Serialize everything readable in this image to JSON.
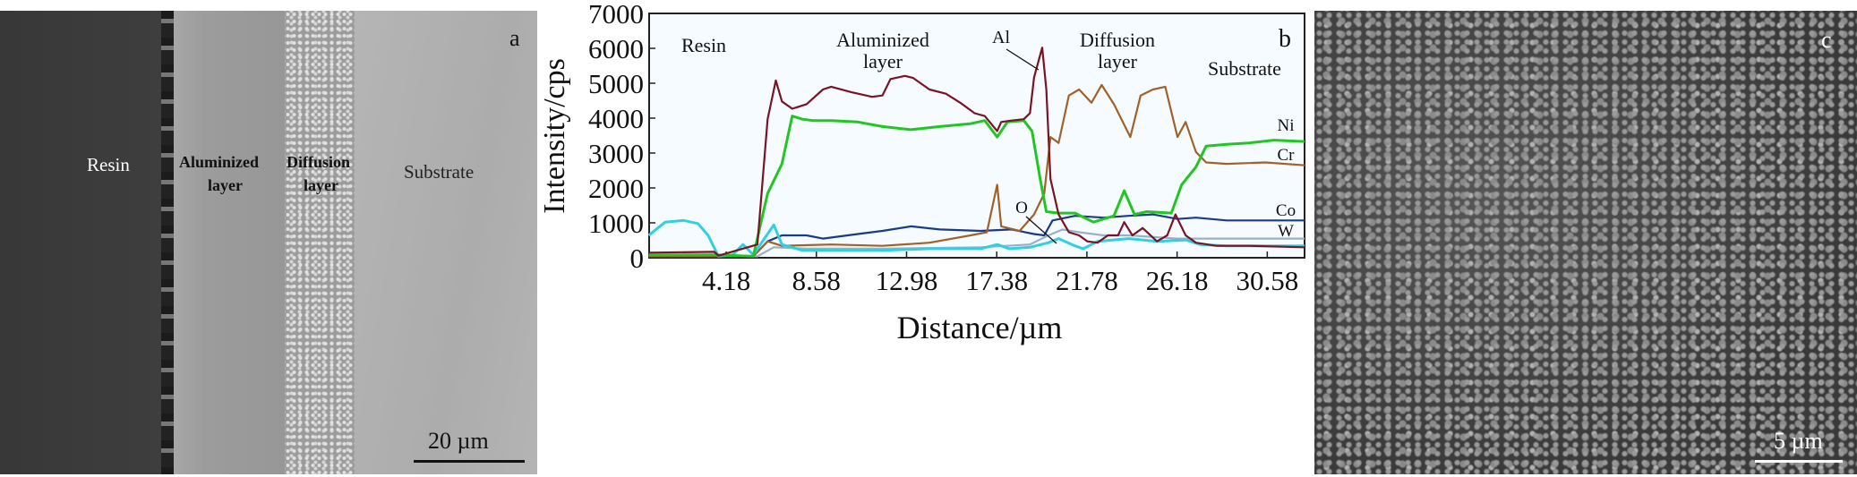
{
  "panel_a": {
    "labels": {
      "resin": "Resin",
      "aluminized_1": "Aluminized",
      "aluminized_2": "layer",
      "diffusion_1": "Diffusion",
      "diffusion_2": "layer",
      "substrate": "Substrate"
    },
    "letter": "a",
    "scale_bar": "20 µm"
  },
  "panel_c": {
    "letter": "c",
    "scale_bar": "5 µm"
  },
  "chart_data": {
    "type": "line",
    "panel_letter": "b",
    "xlabel": "Distance/µm",
    "ylabel": "Intensity/cps",
    "xlim": [
      0.42,
      32.4
    ],
    "ylim": [
      0,
      7000
    ],
    "xticks": [
      4.18,
      8.58,
      12.98,
      17.38,
      21.78,
      26.18,
      30.58
    ],
    "xtick_labels": [
      "4.18",
      "8.58",
      "12.98",
      "17.38",
      "21.78",
      "26.18",
      "30.58"
    ],
    "yticks": [
      0,
      1000,
      2000,
      3000,
      4000,
      5000,
      6000,
      7000
    ],
    "ytick_labels": [
      "0",
      "1000",
      "2000",
      "3000",
      "4000",
      "5000",
      "6000",
      "7000"
    ],
    "region_labels": {
      "resin": "Resin",
      "aluminized_1": "Aluminized",
      "aluminized_2": "layer",
      "diffusion_1": "Diffusion",
      "diffusion_2": "layer",
      "substrate": "Substrate"
    },
    "series": [
      {
        "name": "Al",
        "color": "#7a1424",
        "x": [
          0.4,
          3.6,
          3.8,
          5.7,
          6.2,
          6.6,
          6.9,
          7.4,
          8.1,
          8.9,
          9.3,
          10.3,
          11.3,
          11.8,
          12.2,
          12.9,
          13.3,
          14.1,
          14.9,
          15.6,
          16.3,
          16.8,
          17.4,
          17.6,
          18.1,
          18.7,
          19.0,
          19.2,
          19.6,
          19.8,
          20.0,
          20.4,
          20.9,
          21.4,
          21.8,
          22.3,
          22.8,
          23.3,
          23.6,
          24.0,
          24.5,
          25.2,
          25.7,
          26.1,
          26.6,
          27.1,
          28.1,
          29.7,
          32.4
        ],
        "y": [
          145,
          170,
          60,
          380,
          3970,
          5080,
          4480,
          4270,
          4400,
          4820,
          4900,
          4740,
          4610,
          4650,
          5120,
          5210,
          5150,
          4820,
          4700,
          4440,
          4140,
          4060,
          3630,
          3890,
          3930,
          3970,
          4140,
          5170,
          6020,
          4820,
          2260,
          1240,
          730,
          640,
          470,
          430,
          640,
          640,
          1020,
          640,
          850,
          470,
          640,
          1240,
          640,
          430,
          340,
          340,
          300
        ]
      },
      {
        "name": "Ni",
        "color": "#22c522",
        "x": [
          0.4,
          3.6,
          5.5,
          6.2,
          6.9,
          7.4,
          7.9,
          8.4,
          9.3,
          10.6,
          11.8,
          13.2,
          14.6,
          16.1,
          16.8,
          17.4,
          17.9,
          18.7,
          19.1,
          19.5,
          19.8,
          20.4,
          21.2,
          22.1,
          23.1,
          23.6,
          24.1,
          24.7,
          25.9,
          26.4,
          27.1,
          27.6,
          28.6,
          29.7,
          30.9,
          32.4
        ],
        "y": [
          85,
          85,
          40,
          1840,
          2690,
          4060,
          3970,
          3930,
          3930,
          3890,
          3760,
          3670,
          3760,
          3840,
          3930,
          3460,
          3890,
          3930,
          3630,
          2260,
          1320,
          1280,
          1280,
          1020,
          1200,
          1920,
          1240,
          1320,
          1280,
          2090,
          2600,
          3200,
          3250,
          3290,
          3370,
          3330
        ]
      },
      {
        "name": "Cr",
        "color": "#a0622a",
        "x": [
          0.4,
          5.5,
          6.2,
          6.9,
          9.3,
          11.8,
          14.1,
          16.1,
          16.9,
          17.4,
          17.6,
          18.5,
          19.2,
          19.7,
          20.0,
          20.4,
          20.9,
          21.4,
          22.0,
          22.5,
          23.1,
          23.9,
          24.4,
          25.0,
          25.6,
          26.2,
          26.6,
          27.1,
          27.6,
          28.6,
          30.5,
          32.4
        ],
        "y": [
          40,
          40,
          470,
          340,
          380,
          340,
          430,
          640,
          730,
          2090,
          900,
          770,
          1240,
          1840,
          3460,
          3290,
          4650,
          4820,
          4440,
          4950,
          4400,
          3460,
          4650,
          4820,
          4900,
          3460,
          3890,
          3030,
          2730,
          2690,
          2730,
          2650
        ]
      },
      {
        "name": "Co",
        "color": "#1a3a8a",
        "x": [
          0.4,
          5.5,
          6.2,
          6.9,
          8.1,
          8.9,
          10.6,
          11.8,
          13.2,
          14.6,
          16.6,
          18.1,
          19.2,
          19.7,
          20.1,
          21.2,
          22.6,
          23.8,
          25.0,
          26.2,
          27.1,
          28.6,
          31.0,
          32.4
        ],
        "y": [
          40,
          40,
          470,
          640,
          640,
          550,
          680,
          770,
          900,
          810,
          770,
          810,
          680,
          640,
          1070,
          1200,
          1150,
          1200,
          1240,
          1110,
          1150,
          1070,
          1070,
          1070
        ]
      },
      {
        "name": "W",
        "color": "#9ab0c8",
        "x": [
          0.4,
          5.7,
          6.5,
          8.1,
          11.8,
          16.6,
          19.0,
          19.9,
          20.6,
          21.4,
          22.6,
          23.8,
          26.2,
          28.1,
          29.7,
          32.4
        ],
        "y": [
          40,
          40,
          300,
          260,
          260,
          300,
          380,
          640,
          810,
          730,
          640,
          640,
          550,
          550,
          550,
          550
        ]
      },
      {
        "name": "O",
        "color": "#30d0e0",
        "x": [
          0.4,
          1.2,
          2.1,
          2.8,
          3.3,
          3.8,
          4.5,
          5.0,
          5.5,
          6.5,
          6.9,
          7.9,
          9.3,
          11.8,
          14.1,
          16.6,
          17.4,
          18.0,
          19.0,
          19.9,
          20.4,
          21.2,
          21.6,
          22.3,
          23.8,
          25.2,
          26.6,
          27.3,
          28.6,
          32.4
        ],
        "y": [
          640,
          1020,
          1070,
          980,
          640,
          40,
          85,
          380,
          85,
          940,
          380,
          210,
          210,
          210,
          260,
          260,
          380,
          260,
          300,
          430,
          550,
          340,
          260,
          470,
          550,
          470,
          510,
          380,
          340,
          340
        ]
      }
    ]
  }
}
